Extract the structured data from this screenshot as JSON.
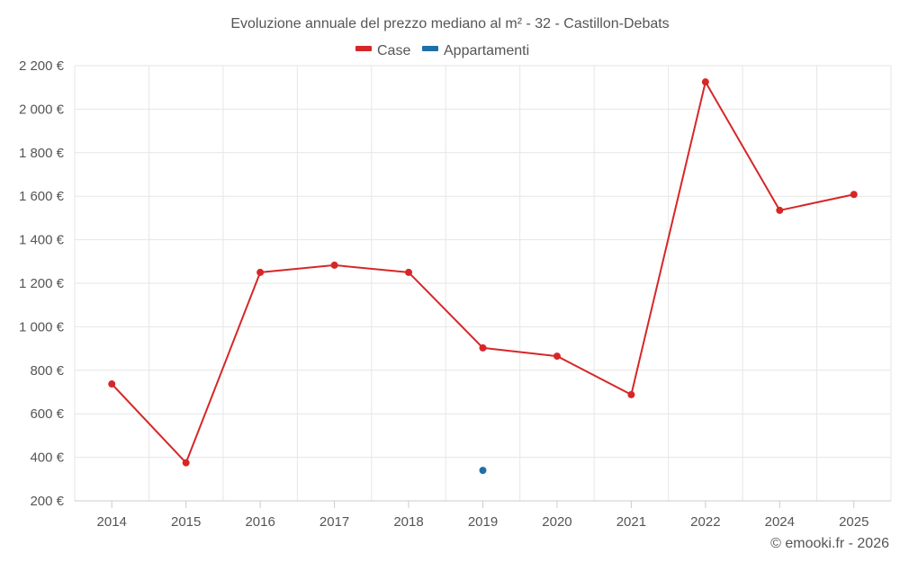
{
  "chart_data": {
    "type": "line",
    "title": "Evoluzione annuale del prezzo mediano al m² - 32 - Castillon-Debats",
    "categories": [
      "2014",
      "2015",
      "2016",
      "2017",
      "2018",
      "2019",
      "2020",
      "2021",
      "2022",
      "2024",
      "2025"
    ],
    "series": [
      {
        "name": "Case",
        "color": "#d62728",
        "values": [
          737,
          375,
          1250,
          1283,
          1250,
          903,
          865,
          688,
          2125,
          1535,
          1608
        ]
      },
      {
        "name": "Appartamenti",
        "color": "#1f6fa8",
        "values": [
          null,
          null,
          null,
          null,
          null,
          340,
          null,
          null,
          null,
          null,
          null
        ]
      }
    ],
    "ylim": [
      200,
      2200
    ],
    "yticks": [
      200,
      400,
      600,
      800,
      1000,
      1200,
      1400,
      1600,
      1800,
      2000,
      2200
    ],
    "ytick_labels": [
      "200 €",
      "400 €",
      "600 €",
      "800 €",
      "1 000 €",
      "1 200 €",
      "1 400 €",
      "1 600 €",
      "1 800 €",
      "2 000 €",
      "2 200 €"
    ],
    "legend_position": "top-center",
    "grid": true,
    "xlabel": "",
    "ylabel": ""
  },
  "credit": "© emooki.fr - 2026"
}
